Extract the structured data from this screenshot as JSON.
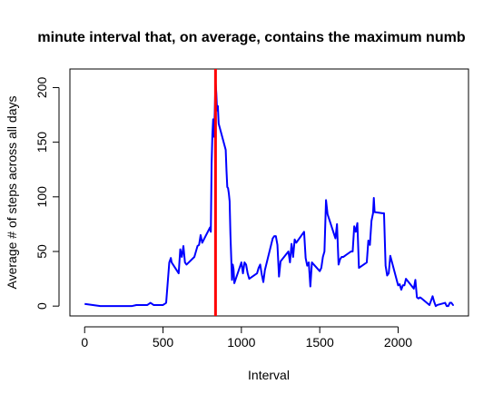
{
  "chart_data": {
    "type": "line",
    "title": "minute interval that, on average, contains the maximum numb",
    "x_label": "Interval",
    "y_label": "Average # of steps across all days",
    "x": [
      0,
      100,
      200,
      300,
      330,
      400,
      420,
      440,
      500,
      520,
      540,
      550,
      555,
      600,
      610,
      620,
      630,
      640,
      650,
      700,
      710,
      720,
      730,
      740,
      750,
      800,
      805,
      810,
      815,
      820,
      825,
      830,
      835,
      840,
      845,
      850,
      855,
      900,
      905,
      910,
      915,
      920,
      925,
      930,
      935,
      940,
      945,
      950,
      955,
      1000,
      1010,
      1020,
      1030,
      1040,
      1050,
      1100,
      1110,
      1120,
      1130,
      1140,
      1150,
      1200,
      1210,
      1220,
      1230,
      1240,
      1250,
      1300,
      1310,
      1320,
      1330,
      1340,
      1350,
      1400,
      1410,
      1420,
      1430,
      1440,
      1450,
      1500,
      1510,
      1520,
      1530,
      1540,
      1550,
      1600,
      1610,
      1620,
      1630,
      1640,
      1650,
      1700,
      1710,
      1720,
      1730,
      1740,
      1750,
      1800,
      1810,
      1820,
      1830,
      1840,
      1845,
      1850,
      1900,
      1910,
      1920,
      1930,
      1940,
      1950,
      2000,
      2010,
      2020,
      2030,
      2040,
      2050,
      2100,
      2110,
      2120,
      2130,
      2140,
      2150,
      2200,
      2210,
      2220,
      2230,
      2240,
      2250,
      2300,
      2310,
      2320,
      2330,
      2340,
      2350,
      2355
    ],
    "series": [
      {
        "name": "steps",
        "color": "#0000ff",
        "values": [
          2,
          0,
          0,
          0,
          1,
          1,
          3,
          1,
          1,
          3,
          40,
          44,
          40,
          30,
          52,
          45,
          55,
          40,
          38,
          45,
          50,
          55,
          56,
          65,
          58,
          72,
          68,
          130,
          157,
          171,
          155,
          177,
          206,
          195,
          179,
          183,
          167,
          143,
          124,
          109,
          108,
          103,
          96,
          66,
          45,
          24,
          38,
          34,
          21,
          40,
          30,
          40,
          38,
          30,
          25,
          30,
          35,
          38,
          29,
          22,
          33,
          62,
          64,
          64,
          56,
          27,
          41,
          50,
          40,
          57,
          45,
          61,
          58,
          68,
          44,
          37,
          40,
          18,
          40,
          32,
          35,
          45,
          50,
          97,
          84,
          62,
          75,
          38,
          43,
          45,
          45,
          50,
          50,
          73,
          68,
          76,
          35,
          40,
          60,
          56,
          78,
          85,
          99,
          86,
          85,
          85,
          37,
          28,
          30,
          46,
          19,
          20,
          15,
          19,
          19,
          25,
          16,
          24,
          8,
          7,
          8,
          7,
          1,
          5,
          9,
          4,
          0,
          1,
          3,
          0,
          0,
          3,
          3,
          1,
          1
        ]
      }
    ],
    "xlim": [
      -94,
      2449
    ],
    "ylim": [
      -9,
      217
    ],
    "xticks": [
      0,
      500,
      1000,
      1500,
      2000
    ],
    "yticks": [
      0,
      50,
      100,
      150,
      200
    ],
    "vline": {
      "x": 835,
      "color": "#ff0000"
    }
  }
}
